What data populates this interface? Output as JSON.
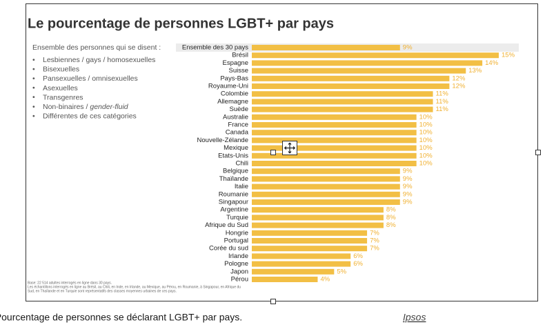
{
  "chart_data": {
    "type": "bar",
    "orientation": "horizontal",
    "title": "Le pourcentage de personnes LGBT+ par pays",
    "subtitle": "Ensemble des personnes qui se disent :",
    "groups": [
      {
        "text": "Lesbiennes / gays / homosexuelles"
      },
      {
        "text": "Bisexuelles"
      },
      {
        "text": "Pansexuelles / omnisexuelles"
      },
      {
        "text": "Asexuelles"
      },
      {
        "text": "Transgenres"
      },
      {
        "text": "Non-binaires /",
        "em": "gender-fluid"
      },
      {
        "text": "Différentes de ces catégories"
      }
    ],
    "categories": [
      "Ensemble des 30 pays",
      "Brésil",
      "Espagne",
      "Suisse",
      "Pays-Bas",
      "Royaume-Uni",
      "Colombie",
      "Allemagne",
      "Suède",
      "Australie",
      "France",
      "Canada",
      "Nouvelle-Zélande",
      "Mexique",
      "Etats-Unis",
      "Chili",
      "Belgique",
      "Thaïlande",
      "Italie",
      "Roumanie",
      "Singapour",
      "Argentine",
      "Turquie",
      "Afrique du Sud",
      "Hongrie",
      "Portugal",
      "Corée du sud",
      "Irlande",
      "Pologne",
      "Japon",
      "Pérou"
    ],
    "values": [
      9,
      15,
      14,
      13,
      12,
      12,
      11,
      11,
      11,
      10,
      10,
      10,
      10,
      10,
      10,
      10,
      9,
      9,
      9,
      9,
      9,
      8,
      8,
      8,
      7,
      7,
      7,
      6,
      6,
      5,
      4
    ],
    "value_labels": [
      "9%",
      "15%",
      "14%",
      "13%",
      "12%",
      "12%",
      "11%",
      "11%",
      "11%",
      "10%",
      "10%",
      "10%",
      "10%",
      "10%",
      "10%",
      "10%",
      "9%",
      "9%",
      "9%",
      "9%",
      "9%",
      "8%",
      "8%",
      "8%",
      "7%",
      "7%",
      "7%",
      "6%",
      "6%",
      "5%",
      "4%"
    ],
    "color": "#f2bf45",
    "notes": [
      "Base: 22 514 adultes interrogés en ligne dans 30 pays.",
      "Les échantillons interrogés en ligne au Brésil, au Chili, en Inde, en Irlande, au Mexique, au Pérou, en Roumanie, à Singapour, en Afrique du",
      "Sud, en Thaïlande et en Turquie sont représentatifs des classes moyennes urbaines de ces pays."
    ]
  },
  "caption": {
    "text": "Pourcentage de personnes se déclarant LGBT+ par pays.",
    "source": "Ipsos"
  }
}
